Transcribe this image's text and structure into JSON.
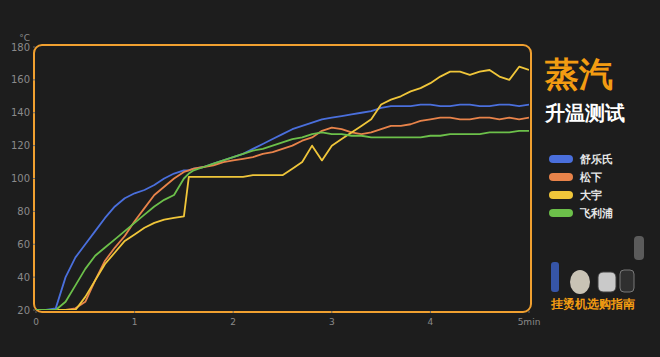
{
  "chart_data": {
    "type": "line",
    "title": "蒸汽",
    "subtitle": "升温测试",
    "y_label": "°C",
    "annotations": [
      "挂烫机选购指南"
    ],
    "x": [
      0,
      0.1,
      0.2,
      0.3,
      0.4,
      0.5,
      0.6,
      0.7,
      0.8,
      0.9,
      1.0,
      1.1,
      1.2,
      1.3,
      1.4,
      1.5,
      1.55,
      1.6,
      1.7,
      1.8,
      1.9,
      2.0,
      2.1,
      2.2,
      2.3,
      2.4,
      2.5,
      2.6,
      2.7,
      2.8,
      2.9,
      3.0,
      3.1,
      3.2,
      3.3,
      3.4,
      3.5,
      3.6,
      3.7,
      3.8,
      3.9,
      4.0,
      4.1,
      4.2,
      4.3,
      4.4,
      4.5,
      4.6,
      4.7,
      4.8,
      4.9,
      5.0
    ],
    "series": [
      {
        "name": "舒乐氏",
        "color": "#4a6fdc",
        "values": [
          20,
          20,
          21,
          40,
          52,
          60,
          68,
          76,
          83,
          88,
          91,
          93,
          96,
          100,
          103,
          105,
          105,
          106,
          107,
          109,
          111,
          113,
          115,
          118,
          121,
          124,
          127,
          130,
          132,
          134,
          136,
          137,
          138,
          139,
          140,
          141,
          143,
          144,
          144,
          144,
          145,
          145,
          144,
          144,
          145,
          145,
          144,
          144,
          145,
          145,
          144,
          145
        ]
      },
      {
        "name": "松下",
        "color": "#e8834a",
        "values": [
          20,
          20,
          20,
          20,
          21,
          25,
          38,
          50,
          58,
          65,
          74,
          82,
          90,
          95,
          100,
          104,
          105,
          106,
          107,
          108,
          110,
          111,
          112,
          113,
          115,
          116,
          118,
          120,
          123,
          125,
          129,
          131,
          130,
          128,
          127,
          128,
          130,
          132,
          132,
          133,
          135,
          136,
          137,
          137,
          136,
          136,
          137,
          137,
          136,
          137,
          136,
          137
        ]
      },
      {
        "name": "大宇",
        "color": "#f0c63a",
        "values": [
          20,
          20,
          20,
          20,
          20,
          28,
          38,
          48,
          55,
          62,
          66,
          70,
          73,
          75,
          76,
          77,
          101,
          101,
          101,
          101,
          101,
          101,
          101,
          102,
          102,
          102,
          102,
          106,
          110,
          120,
          111,
          120,
          124,
          128,
          132,
          136,
          145,
          148,
          150,
          153,
          155,
          158,
          162,
          165,
          165,
          163,
          165,
          166,
          162,
          160,
          168,
          166
        ]
      },
      {
        "name": "飞利浦",
        "color": "#6cc04a",
        "values": [
          20,
          20,
          20,
          25,
          35,
          45,
          53,
          58,
          63,
          68,
          73,
          78,
          83,
          87,
          90,
          100,
          103,
          105,
          107,
          109,
          111,
          113,
          115,
          117,
          118,
          120,
          122,
          124,
          125,
          127,
          128,
          127,
          127,
          126,
          126,
          125,
          125,
          125,
          125,
          125,
          125,
          126,
          126,
          127,
          127,
          127,
          127,
          128,
          128,
          128,
          129,
          129
        ]
      }
    ],
    "xlim": [
      0,
      5
    ],
    "xticks": [
      0,
      1,
      2,
      3,
      4,
      {
        "value": 5,
        "label": "5min"
      }
    ],
    "ylim": [
      20,
      180
    ],
    "yticks": [
      20,
      40,
      60,
      80,
      100,
      120,
      140,
      160,
      180
    ],
    "grid": false,
    "legend": "right"
  }
}
